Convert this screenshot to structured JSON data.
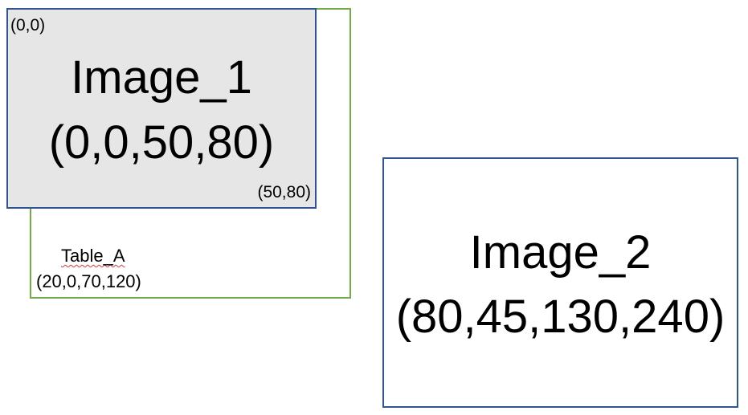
{
  "table_a": {
    "title": "Table_A",
    "coords": "(20,0,70,120)"
  },
  "image_1": {
    "origin_label": "(0,0)",
    "corner_label": "(50,80)",
    "title": "Image_1",
    "range": "(0,0,50,80)"
  },
  "image_2": {
    "title": "Image_2",
    "range": "(80,45,130,240)"
  },
  "colors": {
    "table_border": "#70AD47",
    "image_border": "#2F5597",
    "image_1_fill": "#E7E6E6"
  }
}
